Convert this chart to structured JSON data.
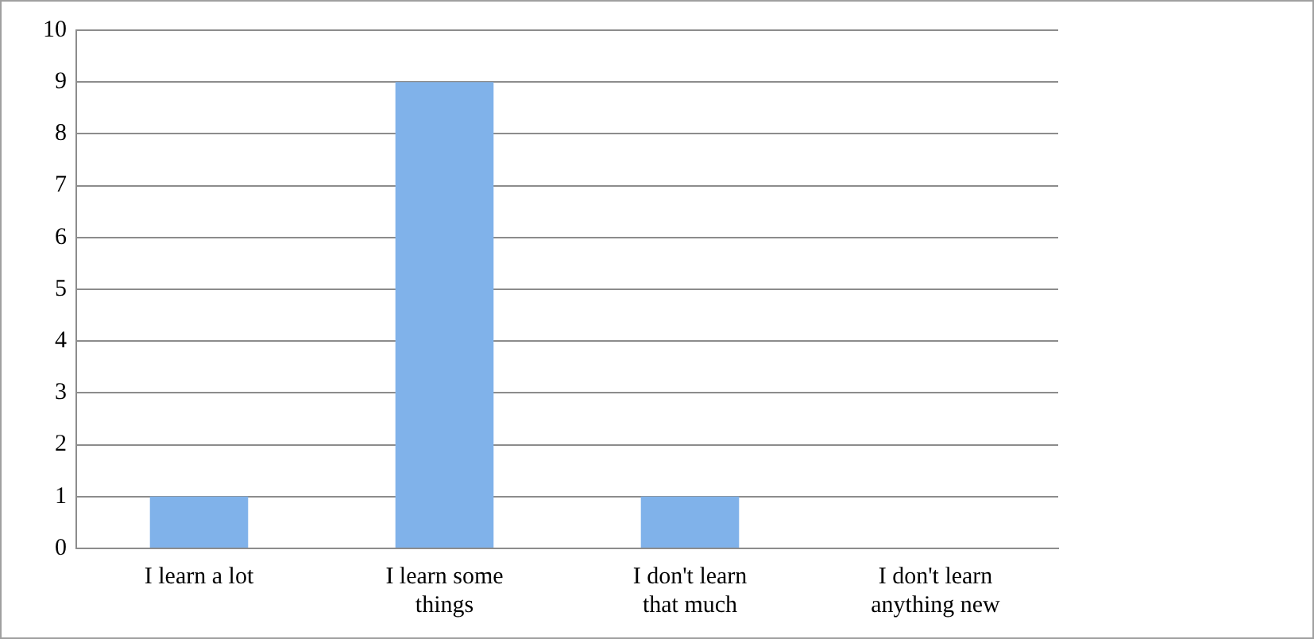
{
  "chart_data": {
    "type": "bar",
    "categories": [
      "I learn a lot",
      "I learn some things",
      "I don't learn that much",
      "I don't learn anything new"
    ],
    "values": [
      1,
      9,
      1,
      0
    ],
    "color": "#80b2ea",
    "ylim": [
      0,
      10
    ],
    "yticks": [
      0,
      1,
      2,
      3,
      4,
      5,
      6,
      7,
      8,
      9,
      10
    ],
    "grid": "y",
    "legend": false
  }
}
